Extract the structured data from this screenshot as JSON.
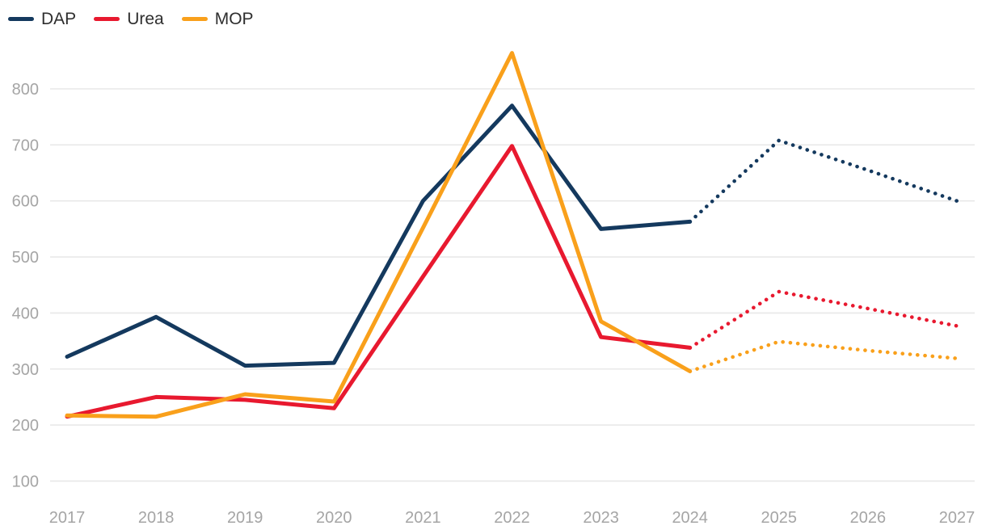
{
  "legend": {
    "items": [
      {
        "label": "DAP"
      },
      {
        "label": "Urea"
      },
      {
        "label": "MOP"
      }
    ]
  },
  "colors": {
    "background": "#FFFFFF",
    "grid": "#E8E8E8",
    "axis_text": "#A5A5A5",
    "legend_text": "#2E2E2E",
    "dap": "#14395E",
    "urea": "#E8192F",
    "mop": "#F9A01B"
  },
  "chart_data": {
    "type": "line",
    "x": [
      2017,
      2018,
      2019,
      2020,
      2021,
      2022,
      2023,
      2024,
      2025,
      2026,
      2027
    ],
    "series": [
      {
        "name": "DAP",
        "color": "#14395E",
        "values": [
          322,
          393,
          306,
          311,
          600,
          770,
          550,
          563,
          708,
          655,
          600
        ],
        "solid_until_index": 7,
        "forecast_style": "dotted"
      },
      {
        "name": "Urea",
        "color": "#E8192F",
        "values": [
          215,
          250,
          245,
          230,
          465,
          698,
          357,
          338,
          438,
          408,
          377
        ],
        "solid_until_index": 7,
        "forecast_style": "dotted"
      },
      {
        "name": "MOP",
        "color": "#F9A01B",
        "values": [
          217,
          215,
          255,
          242,
          552,
          864,
          385,
          296,
          349,
          333,
          319
        ],
        "solid_until_index": 7,
        "forecast_style": "dotted"
      }
    ],
    "yticks": [
      100,
      200,
      300,
      400,
      500,
      600,
      700,
      800
    ],
    "ylim": [
      100,
      880
    ],
    "grid": true,
    "legend_position": "top-left",
    "forecast_start_year": 2024,
    "title": "",
    "xlabel": "",
    "ylabel": ""
  }
}
